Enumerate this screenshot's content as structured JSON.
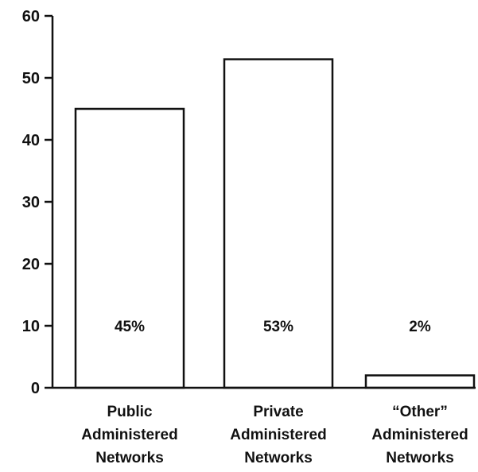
{
  "chart_data": {
    "type": "bar",
    "title": "",
    "xlabel": "",
    "ylabel": "",
    "ylim": [
      0,
      60
    ],
    "yticks": [
      "0",
      "10",
      "20",
      "30",
      "40",
      "50",
      "60"
    ],
    "categories": [
      [
        "Public",
        "Administered",
        "Networks"
      ],
      [
        "Private",
        "Administered",
        "Networks"
      ],
      [
        "“Other”",
        "Administered",
        "Networks"
      ]
    ],
    "values": [
      45,
      53,
      2
    ],
    "data_labels": [
      "45%",
      "53%",
      "2%"
    ],
    "grid": false,
    "legend": "none",
    "bar_fill": "#ffffff",
    "bar_stroke": "#111111"
  }
}
